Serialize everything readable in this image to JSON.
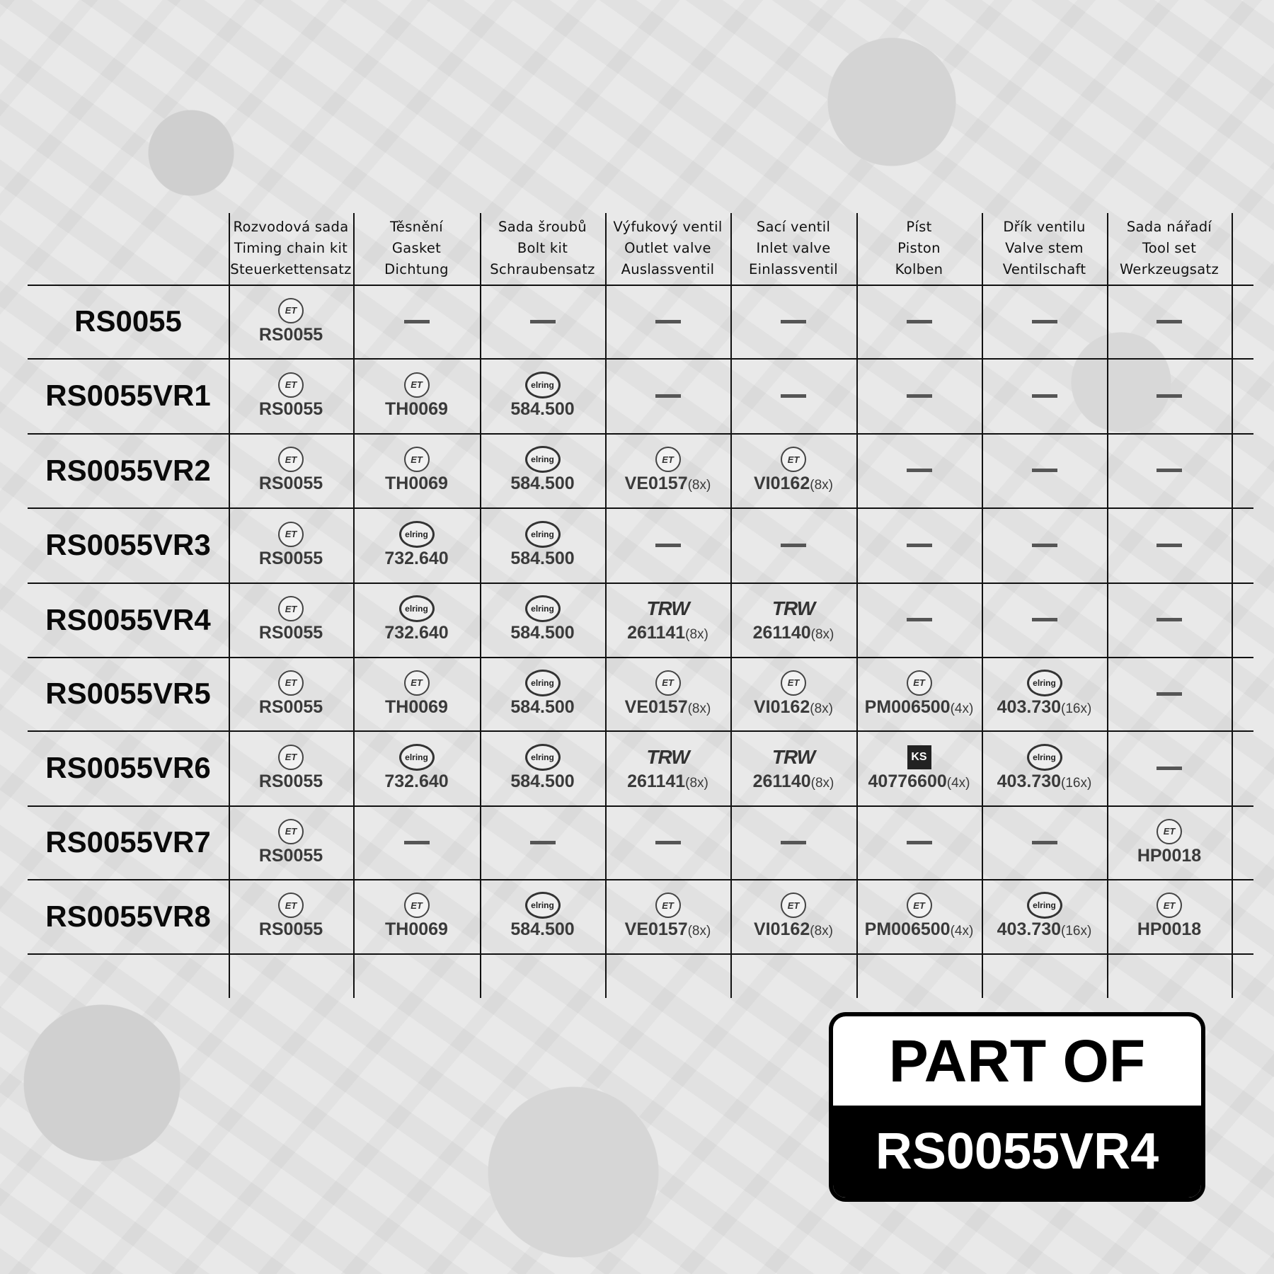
{
  "columns": [
    [
      "Rozvodová sada",
      "Timing chain kit",
      "Steuerkettensatz"
    ],
    [
      "Těsnění",
      "Gasket",
      "Dichtung"
    ],
    [
      "Sada šroubů",
      "Bolt kit",
      "Schraubensatz"
    ],
    [
      "Výfukový ventil",
      "Outlet valve",
      "Auslassventil"
    ],
    [
      "Sací ventil",
      "Inlet valve",
      "Einlassventil"
    ],
    [
      "Píst",
      "Piston",
      "Kolben"
    ],
    [
      "Dřík ventilu",
      "Valve stem",
      "Ventilschaft"
    ],
    [
      "Sada nářadí",
      "Tool set",
      "Werkzeugsatz"
    ]
  ],
  "rows": [
    {
      "label": "RS0055",
      "cells": [
        {
          "brand": "ET",
          "part": "RS0055"
        },
        null,
        null,
        null,
        null,
        null,
        null,
        null
      ]
    },
    {
      "label": "RS0055VR1",
      "cells": [
        {
          "brand": "ET",
          "part": "RS0055"
        },
        {
          "brand": "ET",
          "part": "TH0069"
        },
        {
          "brand": "elring",
          "part": "584.500"
        },
        null,
        null,
        null,
        null,
        null
      ]
    },
    {
      "label": "RS0055VR2",
      "cells": [
        {
          "brand": "ET",
          "part": "RS0055"
        },
        {
          "brand": "ET",
          "part": "TH0069"
        },
        {
          "brand": "elring",
          "part": "584.500"
        },
        {
          "brand": "ET",
          "part": "VE0157",
          "qty": "(8x)"
        },
        {
          "brand": "ET",
          "part": "VI0162",
          "qty": "(8x)"
        },
        null,
        null,
        null
      ]
    },
    {
      "label": "RS0055VR3",
      "cells": [
        {
          "brand": "ET",
          "part": "RS0055"
        },
        {
          "brand": "elring",
          "part": "732.640"
        },
        {
          "brand": "elring",
          "part": "584.500"
        },
        null,
        null,
        null,
        null,
        null
      ]
    },
    {
      "label": "RS0055VR4",
      "cells": [
        {
          "brand": "ET",
          "part": "RS0055"
        },
        {
          "brand": "elring",
          "part": "732.640"
        },
        {
          "brand": "elring",
          "part": "584.500"
        },
        {
          "brand": "TRW",
          "part": "261141",
          "qty": "(8x)"
        },
        {
          "brand": "TRW",
          "part": "261140",
          "qty": "(8x)"
        },
        null,
        null,
        null
      ]
    },
    {
      "label": "RS0055VR5",
      "cells": [
        {
          "brand": "ET",
          "part": "RS0055"
        },
        {
          "brand": "ET",
          "part": "TH0069"
        },
        {
          "brand": "elring",
          "part": "584.500"
        },
        {
          "brand": "ET",
          "part": "VE0157",
          "qty": "(8x)"
        },
        {
          "brand": "ET",
          "part": "VI0162",
          "qty": "(8x)"
        },
        {
          "brand": "ET",
          "part": "PM006500",
          "qty": "(4x)"
        },
        {
          "brand": "elring",
          "part": "403.730",
          "qty": "(16x)"
        },
        null
      ]
    },
    {
      "label": "RS0055VR6",
      "cells": [
        {
          "brand": "ET",
          "part": "RS0055"
        },
        {
          "brand": "elring",
          "part": "732.640"
        },
        {
          "brand": "elring",
          "part": "584.500"
        },
        {
          "brand": "TRW",
          "part": "261141",
          "qty": "(8x)"
        },
        {
          "brand": "TRW",
          "part": "261140",
          "qty": "(8x)"
        },
        {
          "brand": "KS",
          "part": "40776600",
          "qty": "(4x)"
        },
        {
          "brand": "elring",
          "part": "403.730",
          "qty": "(16x)"
        },
        null
      ]
    },
    {
      "label": "RS0055VR7",
      "cells": [
        {
          "brand": "ET",
          "part": "RS0055"
        },
        null,
        null,
        null,
        null,
        null,
        null,
        {
          "brand": "ET",
          "part": "HP0018"
        }
      ]
    },
    {
      "label": "RS0055VR8",
      "cells": [
        {
          "brand": "ET",
          "part": "RS0055"
        },
        {
          "brand": "ET",
          "part": "TH0069"
        },
        {
          "brand": "elring",
          "part": "584.500"
        },
        {
          "brand": "ET",
          "part": "VE0157",
          "qty": "(8x)"
        },
        {
          "brand": "ET",
          "part": "VI0162",
          "qty": "(8x)"
        },
        {
          "brand": "ET",
          "part": "PM006500",
          "qty": "(4x)"
        },
        {
          "brand": "elring",
          "part": "403.730",
          "qty": "(16x)"
        },
        {
          "brand": "ET",
          "part": "HP0018"
        }
      ]
    }
  ],
  "brand_logos": {
    "ET": "ET",
    "elring": "elring",
    "TRW": "TRW",
    "KS": "KS"
  },
  "part_of": {
    "title": "PART OF",
    "code": "RS0055VR4"
  }
}
